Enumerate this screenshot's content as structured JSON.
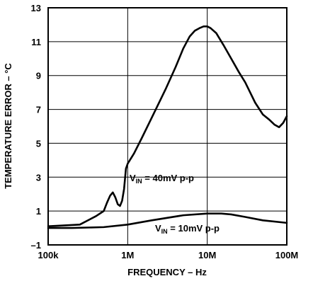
{
  "chart_data": {
    "type": "line",
    "xlabel": "FREQUENCY – Hz",
    "ylabel": "TEMPERATURE ERROR – °C",
    "x_scale": "log",
    "xlim": [
      100000,
      100000000
    ],
    "ylim": [
      -1,
      13
    ],
    "x_ticks": [
      {
        "value": 100000,
        "label": "100k"
      },
      {
        "value": 1000000,
        "label": "1M"
      },
      {
        "value": 10000000,
        "label": "10M"
      },
      {
        "value": 100000000,
        "label": "100M"
      }
    ],
    "y_ticks": [
      {
        "value": -1,
        "label": "–1"
      },
      {
        "value": 1,
        "label": "1"
      },
      {
        "value": 3,
        "label": "3"
      },
      {
        "value": 5,
        "label": "5"
      },
      {
        "value": 7,
        "label": "7"
      },
      {
        "value": 9,
        "label": "9"
      },
      {
        "value": 11,
        "label": "11"
      },
      {
        "value": 13,
        "label": "13"
      }
    ],
    "grid": true,
    "series": [
      {
        "annotation": {
          "main": "V",
          "sub": "IN",
          "rest": " = 40mV p-p"
        },
        "color": "#000000",
        "points": [
          [
            100000,
            0.1
          ],
          [
            250000,
            0.2
          ],
          [
            400000,
            0.7
          ],
          [
            500000,
            1.0
          ],
          [
            550000,
            1.5
          ],
          [
            600000,
            1.9
          ],
          [
            650000,
            2.1
          ],
          [
            700000,
            1.8
          ],
          [
            750000,
            1.4
          ],
          [
            800000,
            1.3
          ],
          [
            850000,
            1.6
          ],
          [
            900000,
            2.3
          ],
          [
            950000,
            3.5
          ],
          [
            1000000,
            3.8
          ],
          [
            1200000,
            4.4
          ],
          [
            1500000,
            5.3
          ],
          [
            2000000,
            6.5
          ],
          [
            3000000,
            8.2
          ],
          [
            4000000,
            9.5
          ],
          [
            5000000,
            10.6
          ],
          [
            6000000,
            11.3
          ],
          [
            7000000,
            11.65
          ],
          [
            8000000,
            11.8
          ],
          [
            9000000,
            11.9
          ],
          [
            10000000,
            11.9
          ],
          [
            11000000,
            11.8
          ],
          [
            13000000,
            11.5
          ],
          [
            16000000,
            10.8
          ],
          [
            20000000,
            10.0
          ],
          [
            25000000,
            9.2
          ],
          [
            30000000,
            8.6
          ],
          [
            40000000,
            7.4
          ],
          [
            50000000,
            6.7
          ],
          [
            60000000,
            6.4
          ],
          [
            70000000,
            6.1
          ],
          [
            80000000,
            5.95
          ],
          [
            90000000,
            6.2
          ],
          [
            100000000,
            6.6
          ]
        ]
      },
      {
        "annotation": {
          "main": "V",
          "sub": "IN",
          "rest": " = 10mV p-p"
        },
        "color": "#000000",
        "points": [
          [
            100000,
            0.0
          ],
          [
            200000,
            0.0
          ],
          [
            500000,
            0.05
          ],
          [
            1000000,
            0.2
          ],
          [
            2000000,
            0.45
          ],
          [
            5000000,
            0.75
          ],
          [
            10000000,
            0.85
          ],
          [
            15000000,
            0.85
          ],
          [
            20000000,
            0.8
          ],
          [
            30000000,
            0.65
          ],
          [
            50000000,
            0.45
          ],
          [
            100000000,
            0.3
          ]
        ]
      }
    ]
  }
}
